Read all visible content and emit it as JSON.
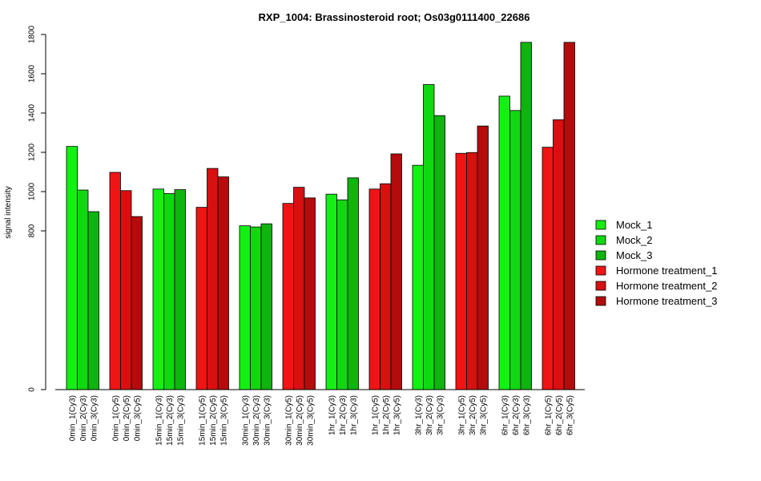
{
  "chart_data": {
    "type": "bar",
    "title": "RXP_1004: Brassinosteroid root; Os03g0111400_22686",
    "xlabel": "",
    "ylabel": "signal intensity",
    "ylim": [
      0,
      1800
    ],
    "yticks": [
      0,
      800,
      1000,
      1200,
      1400,
      1600,
      1800
    ],
    "y_axis_break": "between 0 and 800",
    "grid": false,
    "legend_position": "right",
    "legend": [
      {
        "name": "Mock_1",
        "color": "#14f014"
      },
      {
        "name": "Mock_2",
        "color": "#10d810"
      },
      {
        "name": "Mock_3",
        "color": "#0fb40f"
      },
      {
        "name": "Hormone treatment_1",
        "color": "#f01414"
      },
      {
        "name": "Hormone treatment_2",
        "color": "#d81010"
      },
      {
        "name": "Hormone treatment_3",
        "color": "#b40c0c"
      }
    ],
    "groups": [
      {
        "bars": [
          {
            "label": "0min_1(Cy3)",
            "value": 1230,
            "color": "#14f014"
          },
          {
            "label": "0min_2(Cy3)",
            "value": 1008,
            "color": "#10d810"
          },
          {
            "label": "0min_3(Cy3)",
            "value": 898,
            "color": "#0fb40f"
          }
        ]
      },
      {
        "bars": [
          {
            "label": "0min_1(Cy5)",
            "value": 1098,
            "color": "#f01414"
          },
          {
            "label": "0min_2(Cy5)",
            "value": 1005,
            "color": "#d81010"
          },
          {
            "label": "0min_3(Cy5)",
            "value": 873,
            "color": "#b40c0c"
          }
        ]
      },
      {
        "bars": [
          {
            "label": "15min_1(Cy3)",
            "value": 1013,
            "color": "#14f014"
          },
          {
            "label": "15min_2(Cy3)",
            "value": 990,
            "color": "#10d810"
          },
          {
            "label": "15min_3(Cy3)",
            "value": 1010,
            "color": "#0fb40f"
          }
        ]
      },
      {
        "bars": [
          {
            "label": "15min_1(Cy5)",
            "value": 920,
            "color": "#f01414"
          },
          {
            "label": "15min_2(Cy5)",
            "value": 1118,
            "color": "#d81010"
          },
          {
            "label": "15min_3(Cy5)",
            "value": 1075,
            "color": "#b40c0c"
          }
        ]
      },
      {
        "bars": [
          {
            "label": "30min_1(Cy3)",
            "value": 826,
            "color": "#14f014"
          },
          {
            "label": "30min_2(Cy3)",
            "value": 820,
            "color": "#10d810"
          },
          {
            "label": "30min_3(Cy3)",
            "value": 836,
            "color": "#0fb40f"
          }
        ]
      },
      {
        "bars": [
          {
            "label": "30min_1(Cy5)",
            "value": 940,
            "color": "#f01414"
          },
          {
            "label": "30min_2(Cy5)",
            "value": 1022,
            "color": "#d81010"
          },
          {
            "label": "30min_3(Cy5)",
            "value": 968,
            "color": "#b40c0c"
          }
        ]
      },
      {
        "bars": [
          {
            "label": "1hr_1(Cy3)",
            "value": 987,
            "color": "#14f014"
          },
          {
            "label": "1hr_2(Cy3)",
            "value": 958,
            "color": "#10d810"
          },
          {
            "label": "1hr_3(Cy3)",
            "value": 1070,
            "color": "#0fb40f"
          }
        ]
      },
      {
        "bars": [
          {
            "label": "1hr_1(Cy5)",
            "value": 1013,
            "color": "#f01414"
          },
          {
            "label": "1hr_2(Cy5)",
            "value": 1040,
            "color": "#d81010"
          },
          {
            "label": "1hr_3(Cy5)",
            "value": 1192,
            "color": "#b40c0c"
          }
        ]
      },
      {
        "bars": [
          {
            "label": "3hr_1(Cy3)",
            "value": 1134,
            "color": "#14f014"
          },
          {
            "label": "3hr_2(Cy3)",
            "value": 1545,
            "color": "#10d810"
          },
          {
            "label": "3hr_3(Cy3)",
            "value": 1387,
            "color": "#0fb40f"
          }
        ]
      },
      {
        "bars": [
          {
            "label": "3hr_1(Cy5)",
            "value": 1195,
            "color": "#f01414"
          },
          {
            "label": "3hr_2(Cy5)",
            "value": 1199,
            "color": "#d81010"
          },
          {
            "label": "3hr_3(Cy5)",
            "value": 1334,
            "color": "#b40c0c"
          }
        ]
      },
      {
        "bars": [
          {
            "label": "6hr_1(Cy3)",
            "value": 1486,
            "color": "#14f014"
          },
          {
            "label": "6hr_2(Cy3)",
            "value": 1413,
            "color": "#10d810"
          },
          {
            "label": "6hr_3(Cy3)",
            "value": 1760,
            "color": "#0fb40f"
          }
        ]
      },
      {
        "bars": [
          {
            "label": "6hr_1(Cy5)",
            "value": 1226,
            "color": "#f01414"
          },
          {
            "label": "6hr_2(Cy5)",
            "value": 1366,
            "color": "#d81010"
          },
          {
            "label": "6hr_3(Cy5)",
            "value": 1760,
            "color": "#b40c0c"
          }
        ]
      }
    ]
  }
}
